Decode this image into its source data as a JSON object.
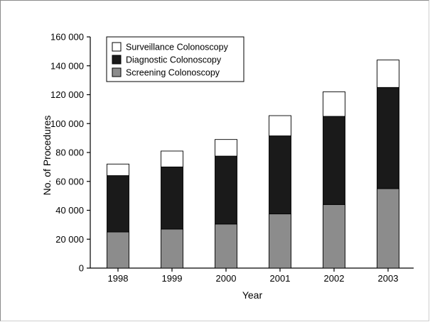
{
  "chart_data": {
    "type": "bar",
    "stacked": true,
    "xlabel": "Year",
    "ylabel": "No. of Procedures",
    "ylim": [
      0,
      160000
    ],
    "yticks": [
      0,
      20000,
      40000,
      60000,
      80000,
      100000,
      120000,
      140000,
      160000
    ],
    "ytick_labels": [
      "0",
      "20 000",
      "40 000",
      "60 000",
      "80 000",
      "100 000",
      "120 000",
      "140 000",
      "160 000"
    ],
    "categories": [
      "1998",
      "1999",
      "2000",
      "2001",
      "2002",
      "2003"
    ],
    "series": [
      {
        "name": "Screening Colonoscopy",
        "color": "#8c8c8c",
        "values": [
          25000,
          27000,
          30500,
          37500,
          44000,
          55000
        ]
      },
      {
        "name": "Diagnostic Colonoscopy",
        "color": "#1a1a1a",
        "values": [
          39000,
          43000,
          47000,
          54000,
          61000,
          70000
        ]
      },
      {
        "name": "Surveillance Colonoscopy",
        "color": "#ffffff",
        "values": [
          8000,
          11000,
          11500,
          14000,
          17000,
          19000
        ]
      }
    ],
    "legend": {
      "placement": "top-left",
      "order": [
        "Surveillance Colonoscopy",
        "Diagnostic Colonoscopy",
        "Screening Colonoscopy"
      ]
    },
    "grid": false
  }
}
